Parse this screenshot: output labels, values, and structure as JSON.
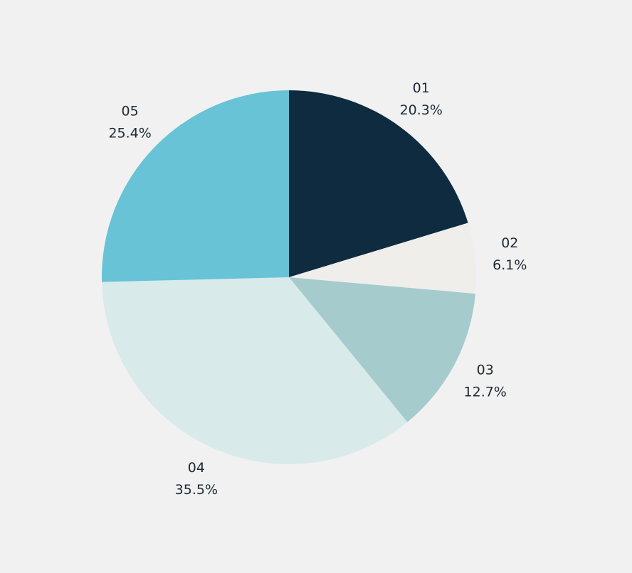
{
  "chart_data": {
    "type": "pie",
    "categories": [
      "01",
      "02",
      "03",
      "04",
      "05"
    ],
    "values": [
      20.3,
      6.1,
      12.7,
      35.5,
      25.4
    ],
    "value_labels": [
      "20.3%",
      "6.1%",
      "12.7%",
      "35.5%",
      "25.4%"
    ],
    "colors": [
      "#0f2b40",
      "#efeeeb",
      "#a5cbcd",
      "#d9eaeb",
      "#68c3d6"
    ]
  }
}
